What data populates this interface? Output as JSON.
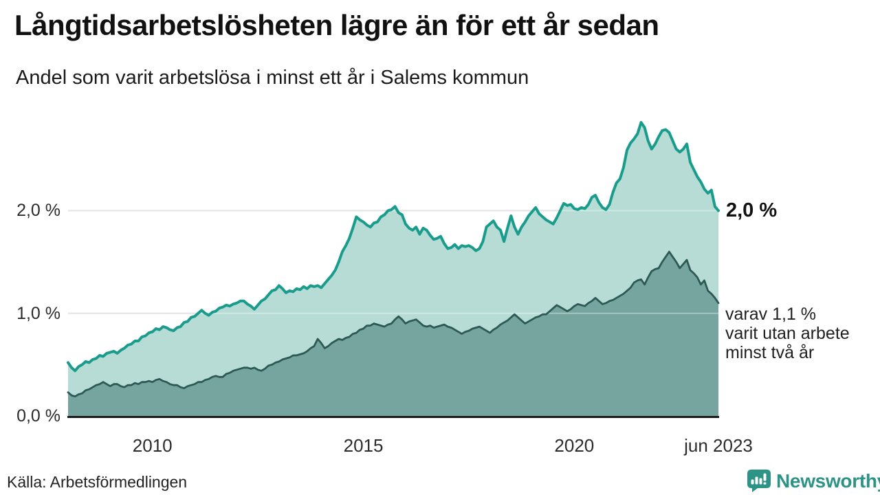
{
  "header": {
    "title": "Långtidsarbetslösheten lägre än för ett år sedan",
    "subtitle": "Andel som varit arbetslösa i minst ett år i Salems kommun"
  },
  "annotations": {
    "total_end_label": "2,0 %",
    "two_year_lines": [
      "varav 1,1 %",
      "varit utan arbete",
      "minst två år"
    ]
  },
  "footer": {
    "source": "Källa: Arbetsförmedlingen",
    "brand": "Newsworthy"
  },
  "chart_data": {
    "type": "area",
    "title": "Långtidsarbetslösheten lägre än för ett år sedan",
    "subtitle": "Andel som varit arbetslösa i minst ett år i Salems kommun",
    "unit": "%",
    "frequency": "monthly",
    "grid": "horizontal",
    "legend": "none",
    "ylim": [
      0,
      2.95
    ],
    "y_tick_values": [
      0,
      1,
      2
    ],
    "y_tick_labels": [
      "0,0 %",
      "1,0 %",
      "2,0 %"
    ],
    "x_tick_labels": [
      "2010",
      "2015",
      "2020",
      "jun 2023"
    ],
    "x_tick_indices": [
      24,
      84,
      144,
      185
    ],
    "colors": {
      "grid": "#d7d7d7",
      "grid_overlay": "rgba(255,255,255,0.35)",
      "axis": "#1a1a1a",
      "background": "#ffffff",
      "accent": "#2e9387"
    },
    "series": [
      {
        "name": "Andel arbetslösa minst ett år",
        "end_value_label": "2,0 %",
        "line_color": "#1a9c8c",
        "fill_color": "#b7dcd6",
        "values": [
          0.52,
          0.47,
          0.44,
          0.48,
          0.5,
          0.53,
          0.52,
          0.55,
          0.56,
          0.59,
          0.58,
          0.61,
          0.62,
          0.63,
          0.61,
          0.64,
          0.66,
          0.69,
          0.7,
          0.73,
          0.73,
          0.77,
          0.78,
          0.81,
          0.82,
          0.85,
          0.84,
          0.87,
          0.86,
          0.84,
          0.83,
          0.86,
          0.87,
          0.91,
          0.92,
          0.96,
          0.97,
          1.0,
          1.03,
          1.0,
          0.98,
          1.01,
          1.02,
          1.05,
          1.06,
          1.08,
          1.07,
          1.09,
          1.1,
          1.12,
          1.12,
          1.09,
          1.07,
          1.04,
          1.08,
          1.12,
          1.14,
          1.18,
          1.22,
          1.23,
          1.27,
          1.24,
          1.2,
          1.22,
          1.21,
          1.24,
          1.23,
          1.26,
          1.24,
          1.27,
          1.26,
          1.27,
          1.25,
          1.29,
          1.33,
          1.37,
          1.42,
          1.5,
          1.6,
          1.66,
          1.73,
          1.83,
          1.94,
          1.91,
          1.89,
          1.86,
          1.84,
          1.88,
          1.89,
          1.94,
          1.96,
          2.0,
          2.01,
          2.04,
          1.98,
          1.96,
          1.87,
          1.83,
          1.81,
          1.84,
          1.77,
          1.83,
          1.81,
          1.76,
          1.72,
          1.73,
          1.75,
          1.68,
          1.63,
          1.64,
          1.67,
          1.63,
          1.66,
          1.65,
          1.66,
          1.64,
          1.61,
          1.63,
          1.7,
          1.84,
          1.87,
          1.9,
          1.84,
          1.81,
          1.7,
          1.83,
          1.95,
          1.84,
          1.77,
          1.84,
          1.89,
          1.95,
          1.99,
          2.03,
          1.97,
          1.94,
          1.91,
          1.89,
          1.87,
          1.93,
          2.0,
          2.07,
          2.05,
          2.06,
          2.02,
          2.01,
          2.03,
          2.02,
          2.06,
          2.13,
          2.15,
          2.08,
          2.03,
          2.01,
          2.06,
          2.18,
          2.27,
          2.31,
          2.42,
          2.59,
          2.66,
          2.7,
          2.75,
          2.86,
          2.81,
          2.68,
          2.6,
          2.65,
          2.72,
          2.78,
          2.79,
          2.76,
          2.68,
          2.6,
          2.57,
          2.6,
          2.65,
          2.47,
          2.4,
          2.33,
          2.28,
          2.21,
          2.17,
          2.2,
          2.04,
          2.0
        ]
      },
      {
        "name": "varav utan arbete minst två år",
        "end_value_label": "1,1 %",
        "line_color": "#2d5954",
        "fill_color": "#76a59f",
        "values": [
          0.23,
          0.2,
          0.19,
          0.21,
          0.22,
          0.25,
          0.26,
          0.28,
          0.3,
          0.31,
          0.33,
          0.31,
          0.29,
          0.31,
          0.31,
          0.29,
          0.28,
          0.3,
          0.3,
          0.32,
          0.31,
          0.33,
          0.33,
          0.34,
          0.33,
          0.35,
          0.36,
          0.34,
          0.33,
          0.31,
          0.3,
          0.3,
          0.28,
          0.27,
          0.29,
          0.3,
          0.31,
          0.33,
          0.33,
          0.35,
          0.36,
          0.38,
          0.39,
          0.38,
          0.38,
          0.41,
          0.42,
          0.44,
          0.45,
          0.46,
          0.47,
          0.47,
          0.46,
          0.47,
          0.45,
          0.44,
          0.46,
          0.49,
          0.5,
          0.52,
          0.53,
          0.55,
          0.56,
          0.57,
          0.59,
          0.59,
          0.6,
          0.61,
          0.63,
          0.66,
          0.68,
          0.75,
          0.71,
          0.66,
          0.68,
          0.71,
          0.73,
          0.75,
          0.74,
          0.76,
          0.77,
          0.8,
          0.81,
          0.84,
          0.85,
          0.88,
          0.88,
          0.9,
          0.89,
          0.88,
          0.87,
          0.89,
          0.9,
          0.94,
          0.97,
          0.94,
          0.9,
          0.92,
          0.93,
          0.94,
          0.91,
          0.88,
          0.87,
          0.88,
          0.86,
          0.87,
          0.88,
          0.89,
          0.87,
          0.86,
          0.84,
          0.82,
          0.8,
          0.82,
          0.83,
          0.85,
          0.86,
          0.87,
          0.85,
          0.83,
          0.81,
          0.84,
          0.86,
          0.89,
          0.91,
          0.93,
          0.96,
          0.99,
          0.96,
          0.93,
          0.9,
          0.92,
          0.94,
          0.96,
          0.97,
          0.99,
          0.99,
          1.02,
          1.05,
          1.08,
          1.06,
          1.04,
          1.02,
          1.04,
          1.07,
          1.09,
          1.08,
          1.07,
          1.1,
          1.12,
          1.15,
          1.12,
          1.09,
          1.1,
          1.12,
          1.13,
          1.15,
          1.17,
          1.19,
          1.22,
          1.25,
          1.3,
          1.32,
          1.33,
          1.28,
          1.35,
          1.41,
          1.43,
          1.44,
          1.5,
          1.55,
          1.6,
          1.55,
          1.5,
          1.44,
          1.48,
          1.52,
          1.42,
          1.39,
          1.35,
          1.28,
          1.32,
          1.22,
          1.19,
          1.15,
          1.1
        ]
      }
    ]
  }
}
